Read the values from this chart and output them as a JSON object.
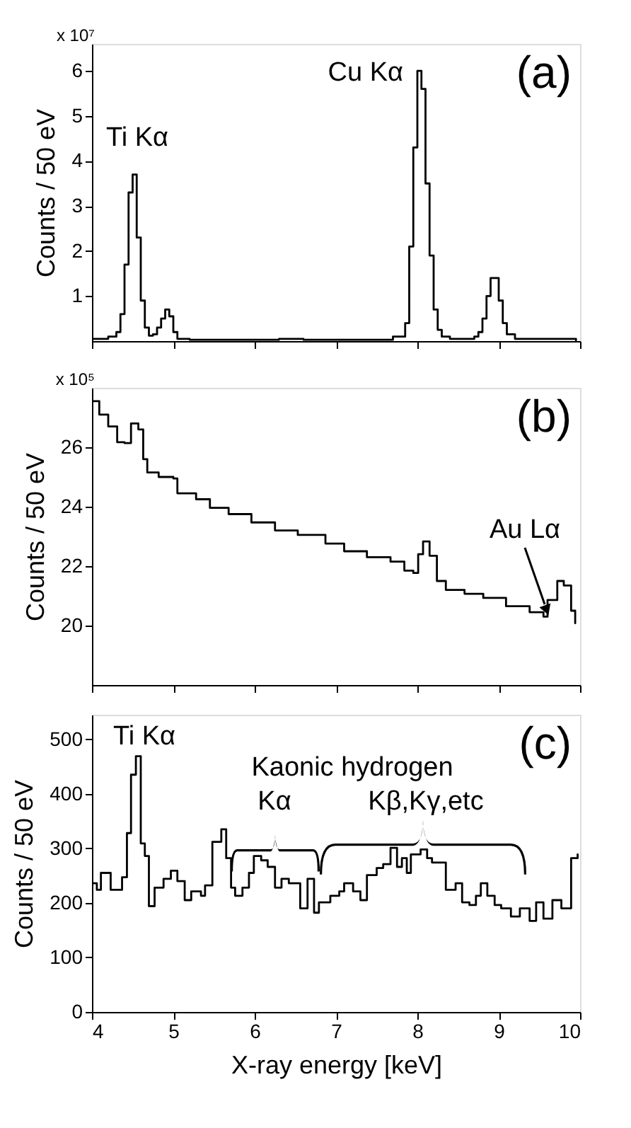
{
  "chart_data": [
    {
      "type": "step",
      "title": "(a)",
      "ylabel": "Counts / 50 eV",
      "xlim": [
        4,
        10
      ],
      "xticks": [
        4,
        5,
        6,
        7,
        8,
        9,
        10
      ],
      "ylim": [
        0,
        6.6
      ],
      "yticks": [
        1,
        2,
        3,
        4,
        5,
        6
      ],
      "tick_labels": "y",
      "color": "#000000",
      "annotations": [
        "x 10⁷",
        "Ti Kα",
        "Cu Kα"
      ],
      "x": [
        4.0,
        4.2,
        4.3,
        4.35,
        4.4,
        4.45,
        4.5,
        4.55,
        4.6,
        4.65,
        4.7,
        4.75,
        4.8,
        4.85,
        4.9,
        4.95,
        5.0,
        5.05,
        5.2,
        6.0,
        6.3,
        6.6,
        7.5,
        7.7,
        7.8,
        7.85,
        7.9,
        7.95,
        8.0,
        8.05,
        8.1,
        8.15,
        8.2,
        8.25,
        8.3,
        8.4,
        8.6,
        8.7,
        8.75,
        8.8,
        8.85,
        8.9,
        8.95,
        9.0,
        9.05,
        9.1,
        9.2,
        9.95
      ],
      "values": [
        0.05,
        0.1,
        0.2,
        0.6,
        1.7,
        3.3,
        3.7,
        2.3,
        0.9,
        0.3,
        0.12,
        0.15,
        0.3,
        0.5,
        0.7,
        0.55,
        0.2,
        0.05,
        0.03,
        0.03,
        0.05,
        0.03,
        0.03,
        0.1,
        0.1,
        0.4,
        2.1,
        4.3,
        6.0,
        5.6,
        3.5,
        1.9,
        0.7,
        0.25,
        0.1,
        0.05,
        0.05,
        0.1,
        0.2,
        0.5,
        1.0,
        1.4,
        1.4,
        0.9,
        0.4,
        0.15,
        0.05,
        0.02
      ]
    },
    {
      "type": "step",
      "title": "(b)",
      "ylabel": "Counts / 50 eV",
      "xlim": [
        4,
        10
      ],
      "xticks": [
        4,
        5,
        6,
        7,
        8,
        9,
        10
      ],
      "ylim": [
        18,
        28
      ],
      "yticks": [
        20,
        22,
        24,
        26
      ],
      "tick_labels": "y",
      "color": "#000000",
      "annotations": [
        "x 10⁵",
        "Au Lα"
      ],
      "x": [
        4.0,
        4.09,
        4.2,
        4.31,
        4.4,
        4.48,
        4.57,
        4.63,
        4.68,
        4.82,
        5.0,
        5.05,
        5.28,
        5.45,
        5.68,
        5.96,
        6.25,
        6.53,
        6.87,
        7.1,
        7.38,
        7.67,
        7.84,
        7.95,
        8.01,
        8.07,
        8.15,
        8.24,
        8.35,
        8.58,
        8.81,
        8.98,
        9.09,
        9.38,
        9.55,
        9.6,
        9.72,
        9.8,
        9.89,
        9.94
      ],
      "values": [
        27.55,
        27.1,
        26.7,
        26.17,
        26.14,
        26.8,
        26.6,
        25.6,
        25.15,
        25.0,
        24.95,
        24.45,
        24.25,
        23.96,
        23.75,
        23.47,
        23.2,
        23.05,
        22.76,
        22.5,
        22.3,
        22.15,
        21.85,
        21.77,
        22.4,
        22.83,
        22.35,
        21.5,
        21.2,
        21.07,
        20.93,
        20.93,
        20.65,
        20.45,
        20.3,
        20.86,
        21.5,
        21.35,
        20.5,
        20.08
      ]
    },
    {
      "type": "step",
      "title": "(c)",
      "ylabel": "Counts / 50 eV",
      "xlabel": "X-ray energy [keV]",
      "xlim": [
        4,
        10
      ],
      "xticks": [
        4,
        5,
        6,
        7,
        8,
        9,
        10
      ],
      "ylim": [
        0,
        545
      ],
      "yticks": [
        0,
        100,
        200,
        300,
        400,
        500
      ],
      "color": "#000000",
      "annotations": [
        "Ti Kα",
        "Kaonic hydrogen",
        "Kα",
        "Kβ,Kγ,etc"
      ],
      "x": [
        4.0,
        4.06,
        4.11,
        4.23,
        4.37,
        4.43,
        4.48,
        4.54,
        4.6,
        4.65,
        4.7,
        4.77,
        4.82,
        4.88,
        4.97,
        5.05,
        5.14,
        5.22,
        5.34,
        5.39,
        5.48,
        5.59,
        5.65,
        5.71,
        5.76,
        5.85,
        5.93,
        5.99,
        6.08,
        6.16,
        6.25,
        6.33,
        6.42,
        6.56,
        6.65,
        6.73,
        6.79,
        6.93,
        7.04,
        7.1,
        7.21,
        7.3,
        7.38,
        7.5,
        7.58,
        7.67,
        7.75,
        7.81,
        7.87,
        7.92,
        8.04,
        8.12,
        8.18,
        8.27,
        8.35,
        8.47,
        8.55,
        8.64,
        8.72,
        8.78,
        8.86,
        8.95,
        9.03,
        9.15,
        9.26,
        9.38,
        9.46,
        9.55,
        9.66,
        9.77,
        9.89,
        9.97
      ],
      "values": [
        236,
        224,
        255,
        224,
        247,
        328,
        435,
        469,
        309,
        286,
        194,
        228,
        228,
        244,
        259,
        240,
        205,
        221,
        213,
        232,
        312,
        335,
        282,
        228,
        213,
        228,
        255,
        286,
        278,
        266,
        228,
        244,
        236,
        190,
        244,
        182,
        201,
        213,
        221,
        236,
        221,
        205,
        251,
        264,
        271,
        301,
        266,
        282,
        255,
        289,
        298,
        282,
        274,
        274,
        224,
        236,
        201,
        196,
        213,
        236,
        213,
        196,
        190,
        175,
        190,
        167,
        201,
        171,
        205,
        190,
        282,
        289
      ]
    }
  ]
}
